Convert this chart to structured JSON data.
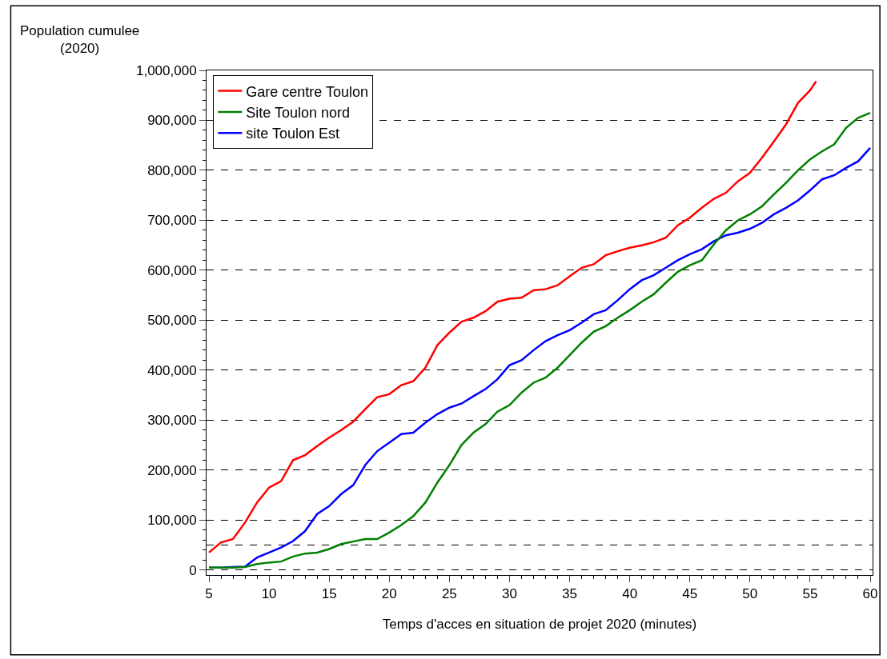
{
  "chart_data": {
    "type": "line",
    "xlabel": "Temps d'acces en situation de projet 2020 (minutes)",
    "ylabel": "Population cumulee\n(2020)",
    "x": [
      5,
      6,
      7,
      8,
      9,
      10,
      11,
      12,
      13,
      14,
      15,
      16,
      17,
      18,
      19,
      20,
      21,
      22,
      23,
      24,
      25,
      26,
      27,
      28,
      29,
      30,
      31,
      32,
      33,
      34,
      35,
      36,
      37,
      38,
      39,
      40,
      41,
      42,
      43,
      44,
      45,
      46,
      47,
      48,
      49,
      50,
      51,
      52,
      53,
      54,
      55,
      56,
      57,
      58,
      59,
      60
    ],
    "series": [
      {
        "name": "Gare centre Toulon",
        "color": "#ff0000",
        "x": [
          5,
          6,
          7,
          8,
          9,
          10,
          11,
          12,
          13,
          14,
          15,
          16,
          17,
          18,
          19,
          20,
          21,
          22,
          23,
          24,
          25,
          26,
          27,
          28,
          29,
          30,
          31,
          32,
          33,
          34,
          35,
          36,
          37,
          38,
          39,
          40,
          41,
          42,
          43,
          44,
          45,
          46,
          47,
          48,
          49,
          50,
          51,
          52,
          53,
          54,
          55,
          55.5
        ],
        "values": [
          35000,
          55000,
          62000,
          95000,
          135000,
          165000,
          178000,
          220000,
          230000,
          248000,
          265000,
          280000,
          297000,
          322000,
          346000,
          352000,
          370000,
          378000,
          405000,
          450000,
          475000,
          497000,
          505000,
          518000,
          537000,
          543000,
          545000,
          560000,
          562000,
          570000,
          588000,
          605000,
          612000,
          630000,
          638000,
          645000,
          650000,
          656000,
          665000,
          690000,
          705000,
          725000,
          743000,
          755000,
          778000,
          795000,
          825000,
          858000,
          892000,
          935000,
          960000,
          978000
        ]
      },
      {
        "name": "Site Toulon nord",
        "color": "#008000",
        "values": [
          5000,
          5000,
          5000,
          6000,
          12000,
          15000,
          17000,
          27000,
          33000,
          35000,
          42000,
          52000,
          57000,
          62000,
          62000,
          75000,
          90000,
          108000,
          135000,
          175000,
          210000,
          250000,
          275000,
          292000,
          317000,
          330000,
          355000,
          375000,
          385000,
          405000,
          430000,
          455000,
          477000,
          488000,
          505000,
          520000,
          537000,
          552000,
          575000,
          597000,
          610000,
          620000,
          652000,
          680000,
          700000,
          712000,
          728000,
          752000,
          775000,
          800000,
          822000,
          838000,
          852000,
          885000,
          905000,
          915000
        ]
      },
      {
        "name": "site Toulon Est",
        "color": "#0000ff",
        "values": [
          5000,
          5000,
          6000,
          7000,
          25000,
          35000,
          45000,
          58000,
          78000,
          112000,
          128000,
          152000,
          170000,
          210000,
          238000,
          255000,
          272000,
          275000,
          295000,
          312000,
          325000,
          333000,
          348000,
          362000,
          382000,
          410000,
          420000,
          440000,
          458000,
          470000,
          480000,
          495000,
          512000,
          520000,
          540000,
          562000,
          580000,
          590000,
          605000,
          620000,
          632000,
          642000,
          658000,
          670000,
          675000,
          683000,
          695000,
          712000,
          725000,
          740000,
          760000,
          782000,
          790000,
          805000,
          818000,
          845000
        ]
      }
    ],
    "xlim": [
      4.8,
      60.2
    ],
    "xticks": [
      5,
      10,
      15,
      20,
      25,
      30,
      35,
      40,
      45,
      50,
      55,
      60
    ],
    "ylim": [
      -10000,
      1000000
    ],
    "yticks": [
      {
        "value": 0,
        "label": "0"
      },
      {
        "value": 100000,
        "label": "100,000"
      },
      {
        "value": 200000,
        "label": "200,000"
      },
      {
        "value": 300000,
        "label": "300,000"
      },
      {
        "value": 400000,
        "label": "400,000"
      },
      {
        "value": 500000,
        "label": "500,000"
      },
      {
        "value": 600000,
        "label": "600,000"
      },
      {
        "value": 700000,
        "label": "700,000"
      },
      {
        "value": 800000,
        "label": "800,000"
      },
      {
        "value": 900000,
        "label": "900,000"
      },
      {
        "value": 1000000,
        "label": "1,000,000"
      }
    ],
    "ref_lines": [
      {
        "axis": "y",
        "value": 50000,
        "label": null,
        "color": "#000000",
        "line_style": "dashed"
      }
    ],
    "grid": "y",
    "legend": "top left",
    "marker": "none",
    "line_style": "solid"
  }
}
